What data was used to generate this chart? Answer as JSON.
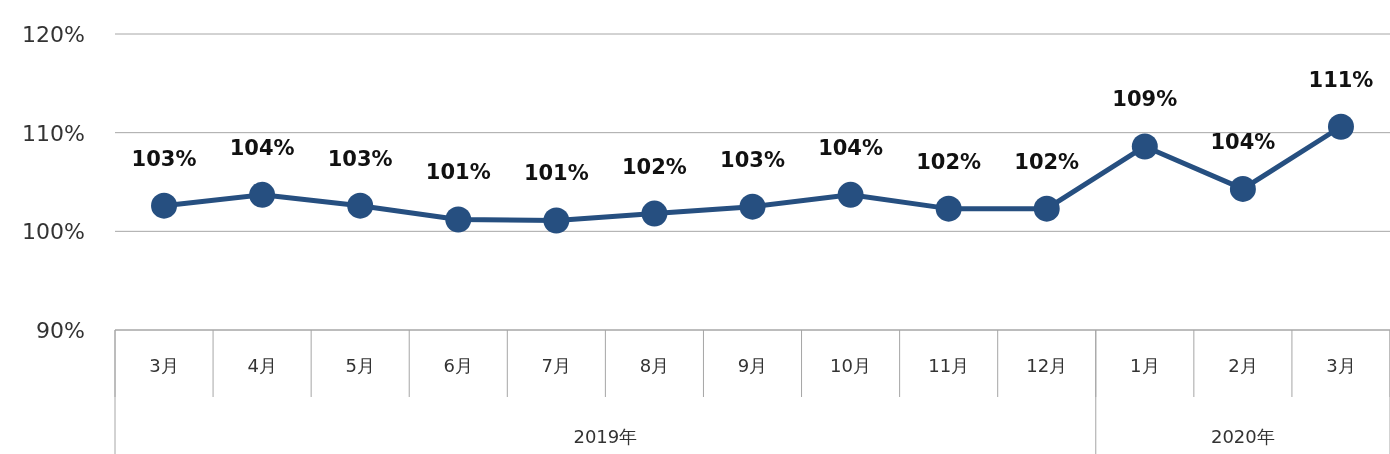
{
  "chart_data": {
    "type": "line",
    "categories": [
      "3月",
      "4月",
      "5月",
      "6月",
      "7月",
      "8月",
      "9月",
      "10月",
      "11月",
      "12月",
      "1月",
      "2月",
      "3月"
    ],
    "series": [
      {
        "color": "#264f80",
        "values": [
          102.6,
          103.7,
          102.6,
          101.2,
          101.1,
          101.8,
          102.5,
          103.7,
          102.3,
          102.3,
          108.6,
          104.3,
          110.6
        ],
        "value_labels": [
          "103%",
          "104%",
          "103%",
          "101%",
          "101%",
          "102%",
          "103%",
          "104%",
          "102%",
          "102%",
          "109%",
          "104%",
          "111%"
        ]
      }
    ],
    "ylim": [
      90,
      120
    ],
    "yticks": [
      {
        "value": 90,
        "label": "90%"
      },
      {
        "value": 100,
        "label": "100%"
      },
      {
        "value": 110,
        "label": "110%"
      },
      {
        "value": 120,
        "label": "120%"
      }
    ],
    "grid": "y",
    "marker": "circle",
    "line_style": "solid",
    "annotations": [
      "2019年",
      "2020年"
    ]
  }
}
